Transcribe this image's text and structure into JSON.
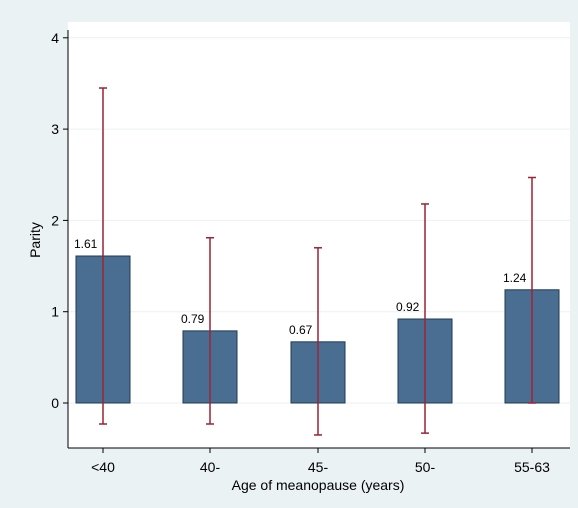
{
  "colors": {
    "outer_background": "#eaf2f3",
    "plot_background": "#ffffff",
    "bar_fill": "#4a6e92",
    "bar_stroke": "#1e3a56",
    "error_bar": "#9b2335",
    "gridline": "#eaf2f3",
    "axis": "#000000"
  },
  "chart_data": {
    "type": "bar",
    "title": "",
    "xlabel": "Age of meanopause (years)",
    "ylabel": "Parity",
    "ylim": [
      -0.45,
      4.1
    ],
    "yticks": [
      0,
      1,
      2,
      3,
      4
    ],
    "grid": true,
    "legend": "none",
    "categories": [
      "<40",
      "40-",
      "45-",
      "50-",
      "55-63"
    ],
    "values": [
      1.61,
      0.79,
      0.67,
      0.92,
      1.24
    ],
    "data_labels": [
      "1.61",
      "0.79",
      "0.67",
      "0.92",
      "1.24"
    ],
    "error_low": [
      -0.23,
      -0.23,
      -0.35,
      -0.33,
      0.0
    ],
    "error_high": [
      3.45,
      1.81,
      1.7,
      2.18,
      2.47
    ]
  }
}
